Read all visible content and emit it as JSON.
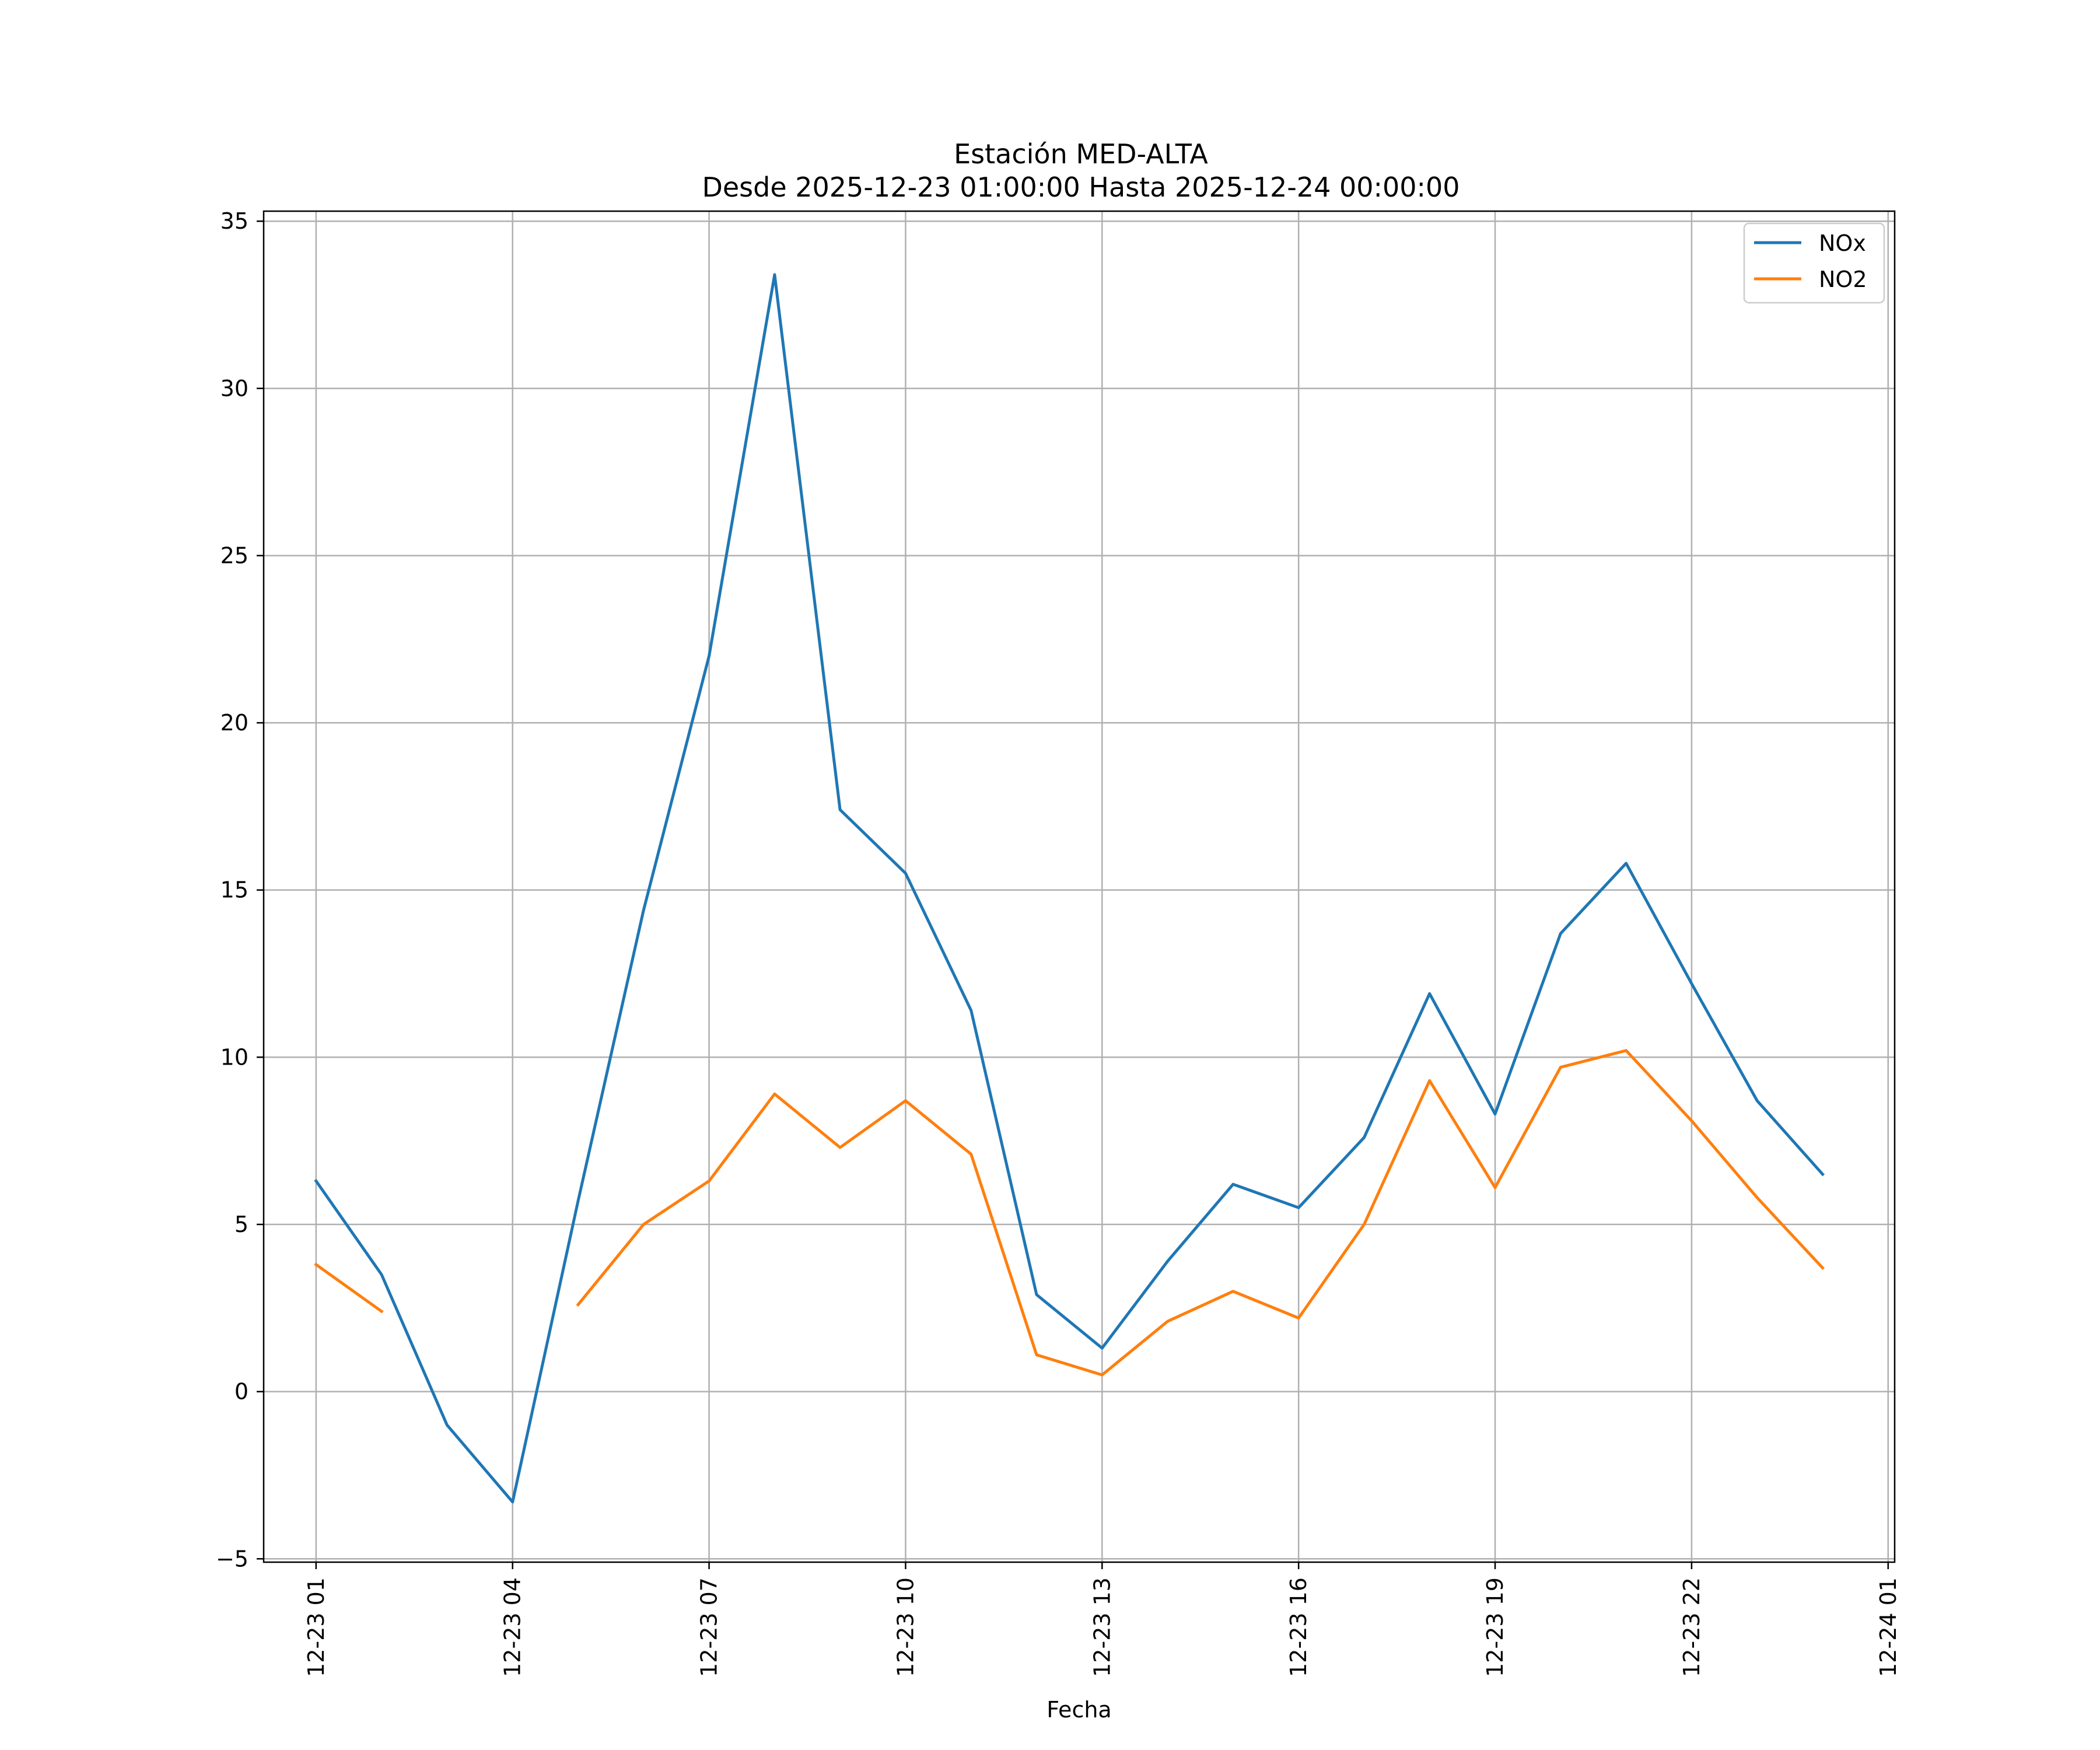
{
  "chart_data": {
    "type": "line",
    "title": "Estación MED-ALTA",
    "subtitle": "Desde 2025-12-23 01:00:00 Hasta 2025-12-24 00:00:00",
    "xlabel": "Fecha",
    "ylabel": "",
    "x_unit": "hours since 12-23 00:00",
    "xlim": [
      0.2,
      25.1
    ],
    "ylim": [
      -5.1,
      35.3
    ],
    "yticks": [
      -5,
      0,
      5,
      10,
      15,
      20,
      25,
      30,
      35
    ],
    "ytick_labels": [
      "−5",
      "0",
      "5",
      "10",
      "15",
      "20",
      "25",
      "30",
      "35"
    ],
    "xticks": [
      1,
      4,
      7,
      10,
      13,
      16,
      19,
      22,
      25
    ],
    "xtick_labels": [
      "12-23 01",
      "12-23 04",
      "12-23 07",
      "12-23 10",
      "12-23 13",
      "12-23 16",
      "12-23 19",
      "12-23 22",
      "12-24 01"
    ],
    "grid": true,
    "legend_position": "top-right",
    "x": [
      1,
      2,
      3,
      4,
      5,
      6,
      7,
      8,
      9,
      10,
      11,
      12,
      13,
      14,
      15,
      16,
      17,
      18,
      19,
      20,
      21,
      22,
      23,
      24
    ],
    "series": [
      {
        "name": "NOx",
        "color": "#1f77b4",
        "values": [
          6.3,
          3.5,
          -1.0,
          -3.3,
          5.7,
          14.4,
          22.0,
          33.4,
          17.4,
          15.5,
          11.4,
          2.9,
          1.3,
          3.9,
          6.2,
          5.5,
          7.6,
          11.9,
          8.3,
          13.7,
          15.8,
          12.2,
          8.7,
          6.5
        ]
      },
      {
        "name": "NO2",
        "color": "#ff7f0e",
        "values": [
          3.8,
          2.4,
          null,
          null,
          2.6,
          5.0,
          6.3,
          8.9,
          7.3,
          8.7,
          7.1,
          1.1,
          0.5,
          2.1,
          3.0,
          2.2,
          5.0,
          9.3,
          6.1,
          9.7,
          10.2,
          8.1,
          5.8,
          3.7
        ]
      }
    ]
  }
}
